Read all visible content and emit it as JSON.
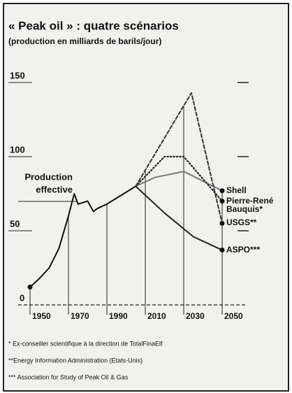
{
  "chart_data": {
    "type": "line",
    "title": "« Peak oil » : quatre scénarios",
    "subtitle": "(production en milliards de barils/jour)",
    "annotation": [
      "Production",
      "effective"
    ],
    "xlim": [
      1938,
      2060
    ],
    "xticks": [
      1950,
      1970,
      1990,
      2010,
      2030,
      2050
    ],
    "ylim": [
      0,
      150
    ],
    "yticks": [
      0,
      50,
      100,
      150
    ],
    "series": [
      {
        "name": "Production effective",
        "color": "#111111",
        "dash": "solid",
        "label": false,
        "x": [
          1950,
          1955,
          1960,
          1965,
          1970,
          1973,
          1975,
          1980,
          1983,
          1985,
          1990,
          1995,
          2000,
          2005
        ],
        "values": [
          12,
          18,
          25,
          38,
          60,
          75,
          68,
          70,
          63,
          65,
          68,
          72,
          76,
          80
        ]
      },
      {
        "name": "Shell",
        "color": "#777777",
        "dash": "solid",
        "label": true,
        "x": [
          2005,
          2015,
          2030,
          2050
        ],
        "values": [
          80,
          86,
          90,
          77
        ]
      },
      {
        "name": "Pierre-René Bauquis*",
        "color": "#222222",
        "dash": "dotted",
        "label": true,
        "x": [
          2005,
          2020,
          2030,
          2050
        ],
        "values": [
          80,
          100,
          100,
          70
        ]
      },
      {
        "name": "USGS**",
        "color": "#333333",
        "dash": "dashed",
        "label": true,
        "x": [
          2005,
          2034,
          2050
        ],
        "values": [
          80,
          143,
          55
        ]
      },
      {
        "name": "ASPO***",
        "color": "#222222",
        "dash": "solid",
        "label": true,
        "x": [
          2005,
          2020,
          2035,
          2050
        ],
        "values": [
          80,
          62,
          46,
          37
        ]
      }
    ],
    "footnotes": [
      "* Ex-conseiller scientifique à la direction de TotalFinaElf",
      "**Energy Information Administration (Etats-Unis)",
      "*** Association for Study of Peak Oil & Gas"
    ]
  }
}
